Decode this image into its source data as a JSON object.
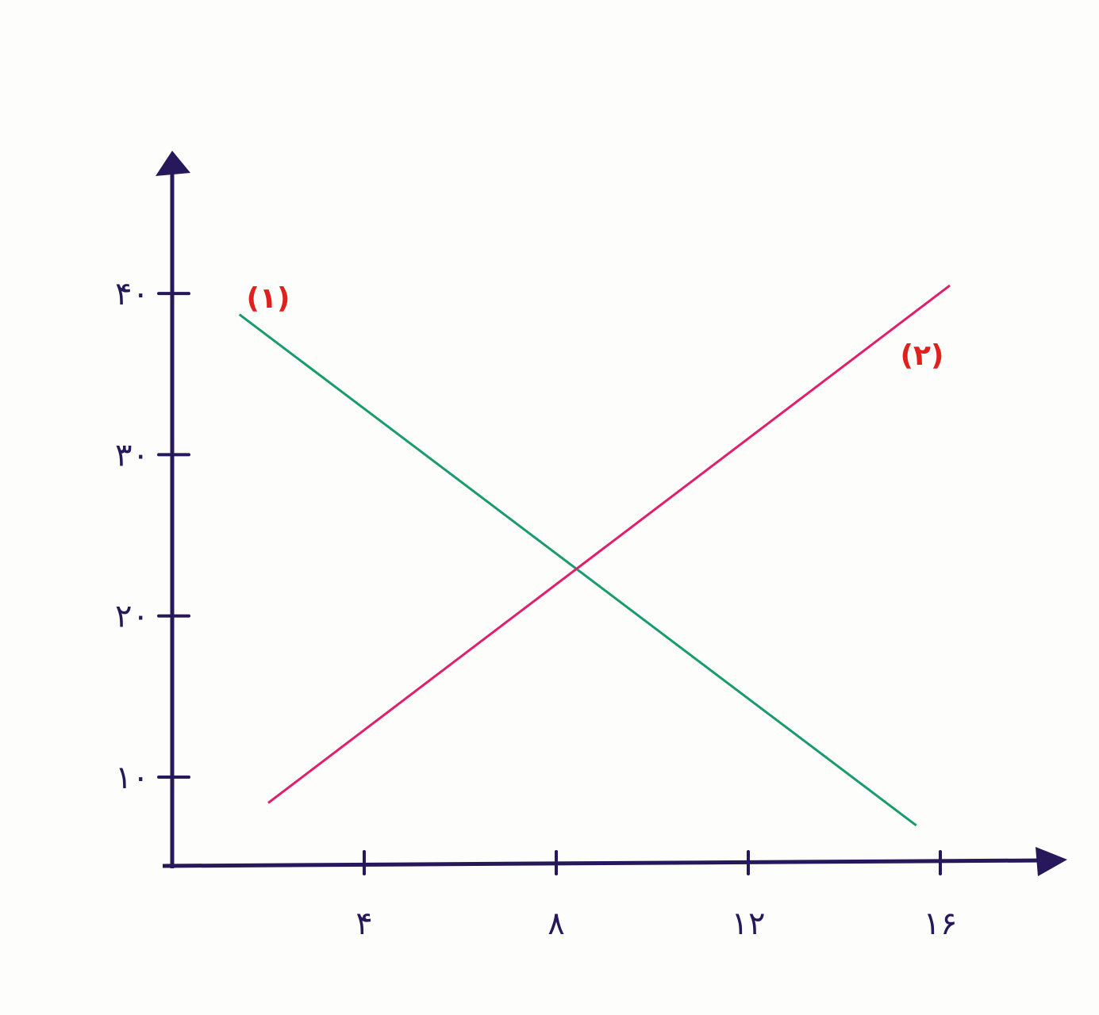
{
  "chart_data": {
    "type": "line",
    "title": "",
    "xlabel": "",
    "ylabel": "",
    "xlim": [
      0,
      18.5
    ],
    "ylim": [
      5,
      48
    ],
    "grid": false,
    "x_ticks": [
      4,
      8,
      12,
      16
    ],
    "x_tick_labels": [
      "۴",
      "۸",
      "۱۲",
      "۱۶"
    ],
    "y_ticks": [
      10,
      20,
      30,
      40
    ],
    "y_tick_labels": [
      "۱۰",
      "۲۰",
      "۳۰",
      "۴۰"
    ],
    "series": [
      {
        "name": "(۱)",
        "color": "#1a9a70",
        "x": [
          1.4,
          15.5
        ],
        "y": [
          38.7,
          7.0
        ]
      },
      {
        "name": "(۲)",
        "color": "#e0206a",
        "x": [
          2.0,
          16.2
        ],
        "y": [
          8.4,
          40.5
        ]
      }
    ],
    "axis_color": "#26185a",
    "label_color": "#e0201c"
  }
}
